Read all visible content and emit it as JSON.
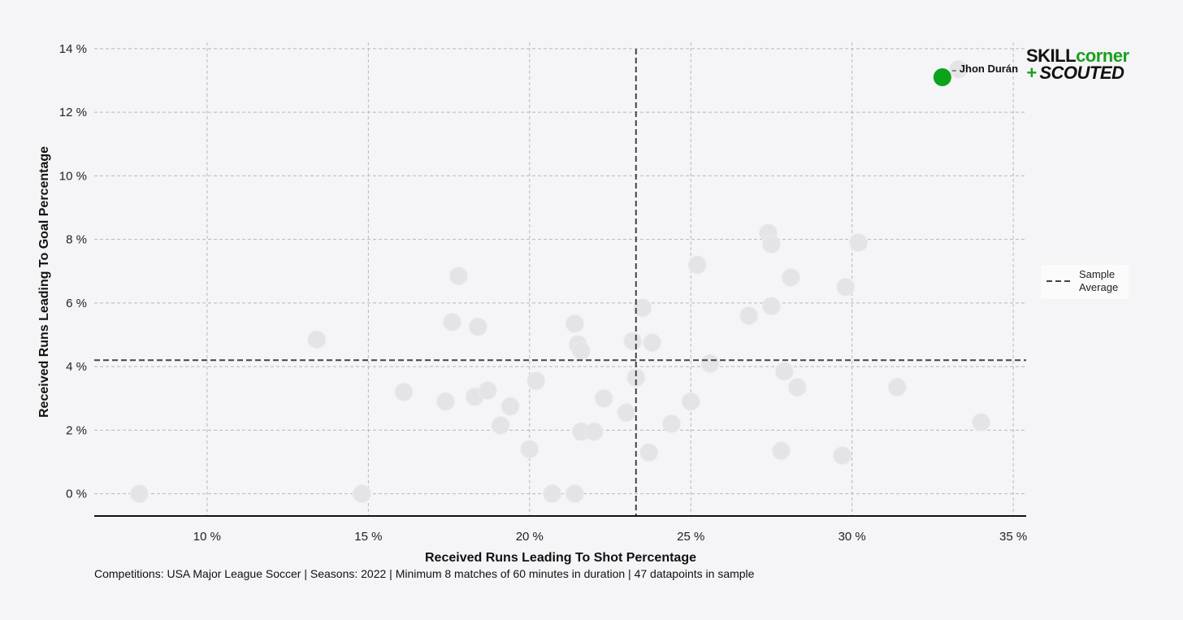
{
  "chart_data": {
    "type": "scatter",
    "xlabel": "Received Runs Leading To Shot Percentage",
    "ylabel": "Received Runs Leading To Goal Percentage",
    "xlim": [
      6.5,
      35.4
    ],
    "ylim": [
      -0.7,
      14.2
    ],
    "x_ticks": [
      10,
      15,
      20,
      25,
      30,
      35
    ],
    "y_ticks": [
      0,
      2,
      4,
      6,
      8,
      10,
      12,
      14
    ],
    "x_tick_labels": [
      "10 %",
      "15 %",
      "20 %",
      "25 %",
      "30 %",
      "35 %"
    ],
    "y_tick_labels": [
      "0 %",
      "2 %",
      "4 %",
      "6 %",
      "8 %",
      "10 %",
      "12 %",
      "14 %"
    ],
    "grid": true,
    "sample_average": {
      "x": 23.3,
      "y": 4.2
    },
    "legend": {
      "position": "right",
      "line1": "Sample",
      "line2": "Average"
    },
    "highlight": {
      "name": "Jhon Durán",
      "x": 32.8,
      "y": 13.1,
      "color": "#0aa31b"
    },
    "points": [
      {
        "x": 7.9,
        "y": 0.0
      },
      {
        "x": 14.8,
        "y": 0.0
      },
      {
        "x": 13.4,
        "y": 4.85
      },
      {
        "x": 16.1,
        "y": 3.2
      },
      {
        "x": 17.4,
        "y": 2.9
      },
      {
        "x": 17.6,
        "y": 5.4
      },
      {
        "x": 17.8,
        "y": 6.85
      },
      {
        "x": 18.3,
        "y": 3.05
      },
      {
        "x": 18.4,
        "y": 5.25
      },
      {
        "x": 18.7,
        "y": 3.25
      },
      {
        "x": 19.1,
        "y": 2.15
      },
      {
        "x": 19.4,
        "y": 2.75
      },
      {
        "x": 20.0,
        "y": 1.4
      },
      {
        "x": 20.2,
        "y": 3.55
      },
      {
        "x": 20.7,
        "y": 0.0
      },
      {
        "x": 21.4,
        "y": 0.0
      },
      {
        "x": 21.4,
        "y": 5.35
      },
      {
        "x": 21.5,
        "y": 4.7
      },
      {
        "x": 21.6,
        "y": 1.95
      },
      {
        "x": 21.6,
        "y": 4.5
      },
      {
        "x": 22.0,
        "y": 1.95
      },
      {
        "x": 22.3,
        "y": 3.0
      },
      {
        "x": 23.0,
        "y": 2.55
      },
      {
        "x": 23.2,
        "y": 4.8
      },
      {
        "x": 23.3,
        "y": 3.65
      },
      {
        "x": 23.5,
        "y": 5.85
      },
      {
        "x": 23.7,
        "y": 1.3
      },
      {
        "x": 23.8,
        "y": 4.75
      },
      {
        "x": 24.4,
        "y": 2.2
      },
      {
        "x": 25.0,
        "y": 2.9
      },
      {
        "x": 25.2,
        "y": 7.2
      },
      {
        "x": 25.6,
        "y": 4.1
      },
      {
        "x": 26.8,
        "y": 5.6
      },
      {
        "x": 27.4,
        "y": 8.2
      },
      {
        "x": 27.5,
        "y": 7.85
      },
      {
        "x": 27.5,
        "y": 5.9
      },
      {
        "x": 27.8,
        "y": 1.35
      },
      {
        "x": 27.9,
        "y": 3.85
      },
      {
        "x": 28.1,
        "y": 6.8
      },
      {
        "x": 28.3,
        "y": 3.35
      },
      {
        "x": 29.7,
        "y": 1.2
      },
      {
        "x": 29.8,
        "y": 6.5
      },
      {
        "x": 30.2,
        "y": 7.9
      },
      {
        "x": 31.4,
        "y": 3.35
      },
      {
        "x": 34.0,
        "y": 2.25
      },
      {
        "x": 33.3,
        "y": 13.35
      }
    ]
  },
  "footnote": "Competitions: USA Major League Soccer | Seasons: 2022 | Minimum 8 matches of 60 minutes in duration | 47 datapoints in sample",
  "logo": {
    "line1_a": "SKILL",
    "line1_b": "corner",
    "line2_a": "+",
    "line2_b": "SCOUTED",
    "green": "#1aa01f",
    "dark": "#111111"
  },
  "colors": {
    "point": "#e4e3e6",
    "point_stroke": "#ececee",
    "grid": "#b8b8bc",
    "average_line": "#444444",
    "axis": "#111111"
  }
}
